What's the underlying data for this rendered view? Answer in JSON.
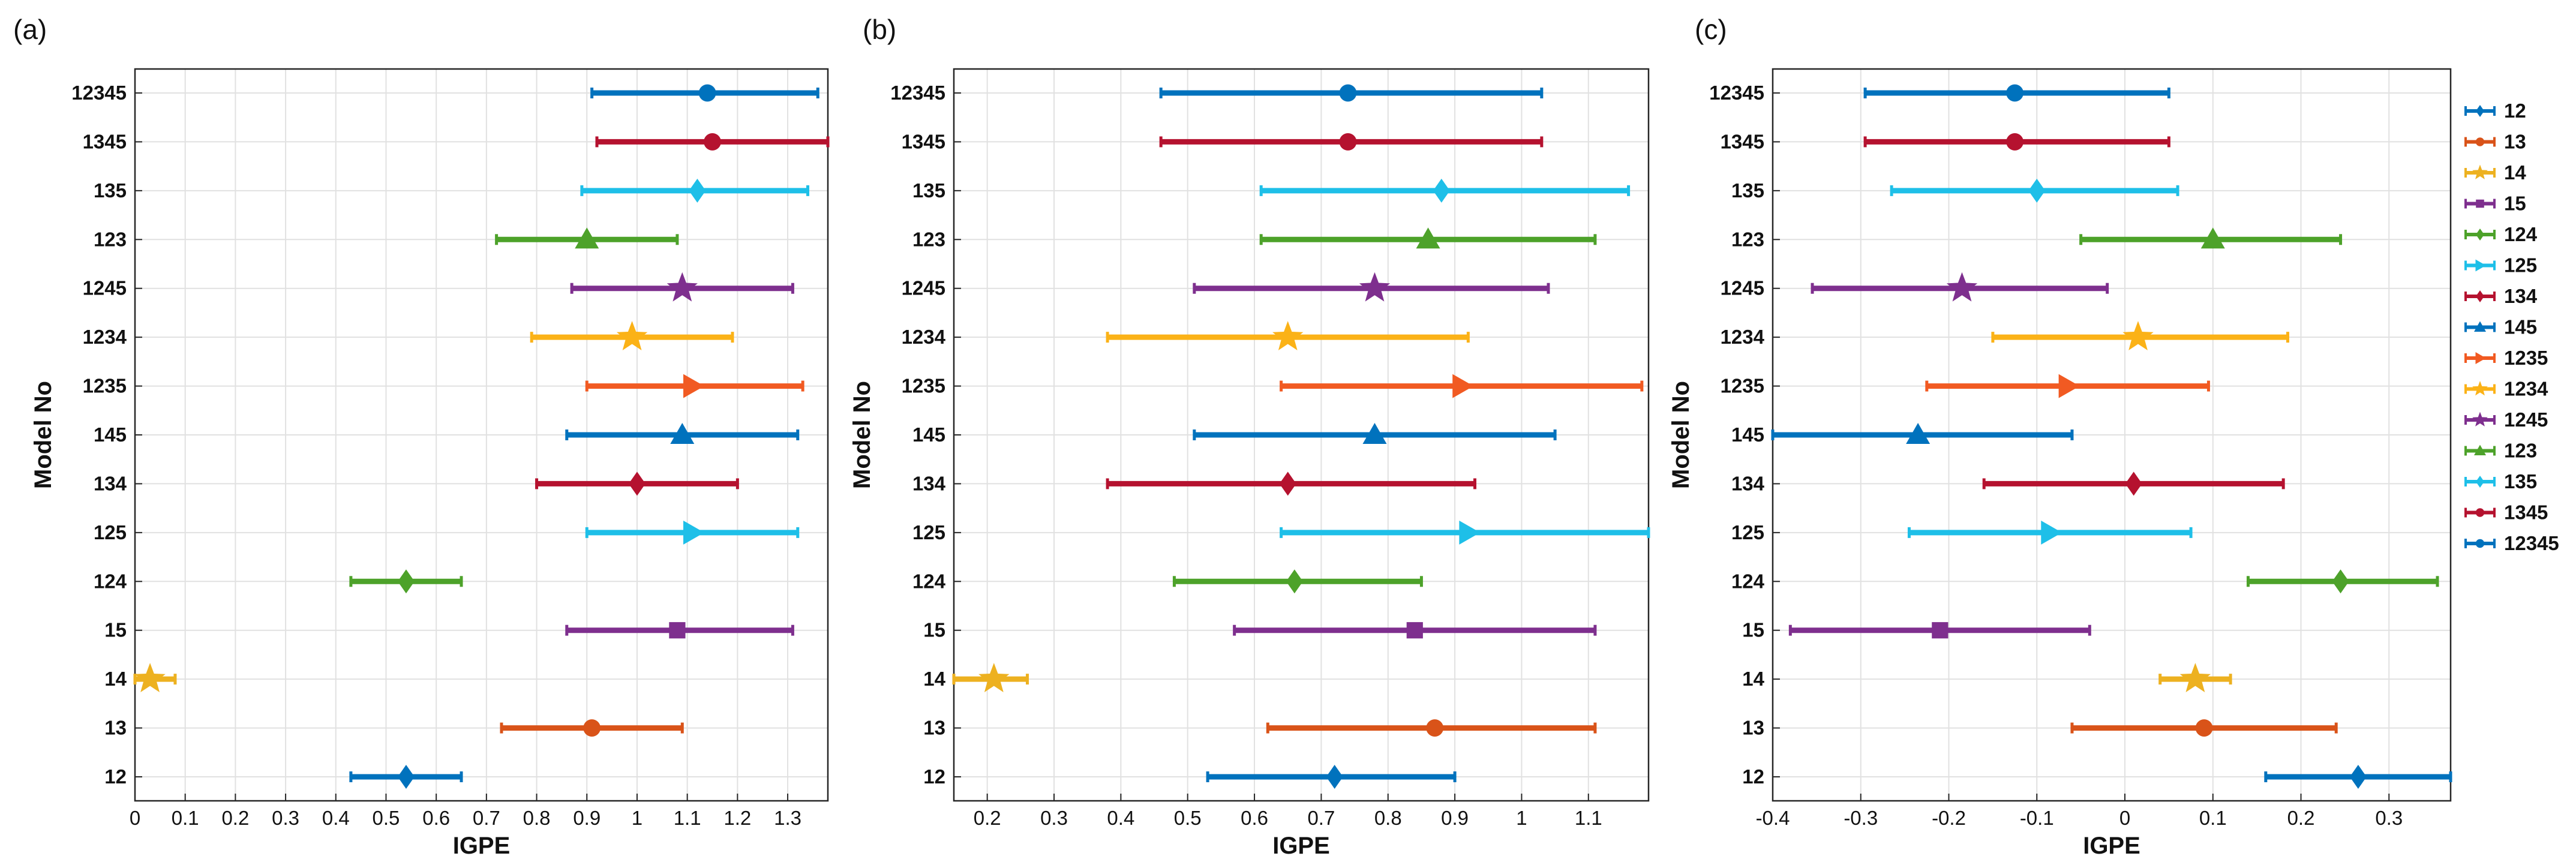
{
  "chart_data": {
    "type": "errorbar",
    "ylabel": "Model No",
    "xlabel": "IGPE",
    "categories": [
      "12",
      "13",
      "14",
      "15",
      "124",
      "125",
      "134",
      "145",
      "1235",
      "1234",
      "1245",
      "123",
      "135",
      "1345",
      "12345"
    ],
    "series_styles": [
      {
        "name": "12",
        "color": "#0072BD",
        "marker": "diamond"
      },
      {
        "name": "13",
        "color": "#D95319",
        "marker": "circle"
      },
      {
        "name": "14",
        "color": "#EDB120",
        "marker": "star"
      },
      {
        "name": "15",
        "color": "#7E2F8E",
        "marker": "square"
      },
      {
        "name": "124",
        "color": "#4DA22A",
        "marker": "diamond"
      },
      {
        "name": "125",
        "color": "#1EBFE8",
        "marker": "triangle-right"
      },
      {
        "name": "134",
        "color": "#B5122F",
        "marker": "diamond"
      },
      {
        "name": "145",
        "color": "#0072BD",
        "marker": "triangle-up"
      },
      {
        "name": "1235",
        "color": "#F15A22",
        "marker": "triangle-right"
      },
      {
        "name": "1234",
        "color": "#FBB217",
        "marker": "star"
      },
      {
        "name": "1245",
        "color": "#7E2F8E",
        "marker": "star"
      },
      {
        "name": "123",
        "color": "#4DA22A",
        "marker": "triangle-up"
      },
      {
        "name": "135",
        "color": "#1EBFE8",
        "marker": "diamond"
      },
      {
        "name": "1345",
        "color": "#B5122F",
        "marker": "circle"
      },
      {
        "name": "12345",
        "color": "#0072BD",
        "marker": "circle"
      }
    ],
    "panels": [
      {
        "label": "(a)",
        "xlabel": "IGPE",
        "ylabel": "Model No",
        "xlim": [
          0,
          1.38
        ],
        "xticks": [
          0,
          0.1,
          0.2,
          0.3,
          0.4,
          0.5,
          0.6,
          0.7,
          0.8,
          0.9,
          1,
          1.1,
          1.2,
          1.3
        ],
        "xtick_labels": [
          "0",
          "0.1",
          "0.2",
          "0.3",
          "0.4",
          "0.5",
          "0.6",
          "0.7",
          "0.8",
          "0.9",
          "1",
          "1.1",
          "1.2",
          "1.3"
        ],
        "grid": true,
        "series": [
          {
            "name": "12",
            "center": 0.54,
            "low": 0.43,
            "high": 0.65
          },
          {
            "name": "13",
            "center": 0.91,
            "low": 0.73,
            "high": 1.09
          },
          {
            "name": "14",
            "center": 0.03,
            "low": 0.0,
            "high": 0.08
          },
          {
            "name": "15",
            "center": 1.08,
            "low": 0.86,
            "high": 1.31
          },
          {
            "name": "124",
            "center": 0.54,
            "low": 0.43,
            "high": 0.65
          },
          {
            "name": "125",
            "center": 1.11,
            "low": 0.9,
            "high": 1.32
          },
          {
            "name": "134",
            "center": 1.0,
            "low": 0.8,
            "high": 1.2
          },
          {
            "name": "145",
            "center": 1.09,
            "low": 0.86,
            "high": 1.32
          },
          {
            "name": "1235",
            "center": 1.11,
            "low": 0.9,
            "high": 1.33
          },
          {
            "name": "1234",
            "center": 0.99,
            "low": 0.79,
            "high": 1.19
          },
          {
            "name": "1245",
            "center": 1.09,
            "low": 0.87,
            "high": 1.31
          },
          {
            "name": "123",
            "center": 0.9,
            "low": 0.72,
            "high": 1.08
          },
          {
            "name": "135",
            "center": 1.12,
            "low": 0.89,
            "high": 1.34
          },
          {
            "name": "1345",
            "center": 1.15,
            "low": 0.92,
            "high": 1.38
          },
          {
            "name": "12345",
            "center": 1.14,
            "low": 0.91,
            "high": 1.36
          }
        ]
      },
      {
        "label": "(b)",
        "xlabel": "IGPE",
        "ylabel": "Model No",
        "xlim": [
          0.15,
          1.19
        ],
        "xticks": [
          0.2,
          0.3,
          0.4,
          0.5,
          0.6,
          0.7,
          0.8,
          0.9,
          1,
          1.1
        ],
        "xtick_labels": [
          "0.2",
          "0.3",
          "0.4",
          "0.5",
          "0.6",
          "0.7",
          "0.8",
          "0.9",
          "1",
          "1.1"
        ],
        "grid": true,
        "series": [
          {
            "name": "12",
            "center": 0.72,
            "low": 0.53,
            "high": 0.9
          },
          {
            "name": "13",
            "center": 0.87,
            "low": 0.62,
            "high": 1.11
          },
          {
            "name": "14",
            "center": 0.21,
            "low": 0.15,
            "high": 0.26
          },
          {
            "name": "15",
            "center": 0.84,
            "low": 0.57,
            "high": 1.11
          },
          {
            "name": "124",
            "center": 0.66,
            "low": 0.48,
            "high": 0.85
          },
          {
            "name": "125",
            "center": 0.92,
            "low": 0.64,
            "high": 1.19
          },
          {
            "name": "134",
            "center": 0.65,
            "low": 0.38,
            "high": 0.93
          },
          {
            "name": "145",
            "center": 0.78,
            "low": 0.51,
            "high": 1.05
          },
          {
            "name": "1235",
            "center": 0.91,
            "low": 0.64,
            "high": 1.18
          },
          {
            "name": "1234",
            "center": 0.65,
            "low": 0.38,
            "high": 0.92
          },
          {
            "name": "1245",
            "center": 0.78,
            "low": 0.51,
            "high": 1.04
          },
          {
            "name": "123",
            "center": 0.86,
            "low": 0.61,
            "high": 1.11
          },
          {
            "name": "135",
            "center": 0.88,
            "low": 0.61,
            "high": 1.16
          },
          {
            "name": "1345",
            "center": 0.74,
            "low": 0.46,
            "high": 1.03
          },
          {
            "name": "12345",
            "center": 0.74,
            "low": 0.46,
            "high": 1.03
          }
        ]
      },
      {
        "label": "(c)",
        "xlabel": "IGPE",
        "ylabel": "Model No",
        "xlim": [
          -0.4,
          0.37
        ],
        "xticks": [
          -0.4,
          -0.3,
          -0.2,
          -0.1,
          0,
          0.1,
          0.2,
          0.3
        ],
        "xtick_labels": [
          "-0.4",
          "-0.3",
          "-0.2",
          "-0.1",
          "0",
          "0.1",
          "0.2",
          "0.3"
        ],
        "grid": true,
        "legend": {
          "position": "outside-right",
          "entries": [
            "12",
            "13",
            "14",
            "15",
            "124",
            "125",
            "134",
            "145",
            "1235",
            "1234",
            "1245",
            "123",
            "135",
            "1345",
            "12345"
          ]
        },
        "series": [
          {
            "name": "12",
            "center": 0.265,
            "low": 0.16,
            "high": 0.37
          },
          {
            "name": "13",
            "center": 0.09,
            "low": -0.06,
            "high": 0.24
          },
          {
            "name": "14",
            "center": 0.08,
            "low": 0.04,
            "high": 0.12
          },
          {
            "name": "15",
            "center": -0.21,
            "low": -0.38,
            "high": -0.04
          },
          {
            "name": "124",
            "center": 0.245,
            "low": 0.14,
            "high": 0.355
          },
          {
            "name": "125",
            "center": -0.085,
            "low": -0.245,
            "high": 0.075
          },
          {
            "name": "134",
            "center": 0.01,
            "low": -0.16,
            "high": 0.18
          },
          {
            "name": "145",
            "center": -0.235,
            "low": -0.4,
            "high": -0.06
          },
          {
            "name": "1235",
            "center": -0.065,
            "low": -0.225,
            "high": 0.095
          },
          {
            "name": "1234",
            "center": 0.015,
            "low": -0.15,
            "high": 0.185
          },
          {
            "name": "1245",
            "center": -0.185,
            "low": -0.355,
            "high": -0.02
          },
          {
            "name": "123",
            "center": 0.1,
            "low": -0.05,
            "high": 0.245
          },
          {
            "name": "135",
            "center": -0.1,
            "low": -0.265,
            "high": 0.06
          },
          {
            "name": "1345",
            "center": -0.125,
            "low": -0.295,
            "high": 0.05
          },
          {
            "name": "12345",
            "center": -0.125,
            "low": -0.295,
            "high": 0.05
          }
        ]
      }
    ]
  }
}
